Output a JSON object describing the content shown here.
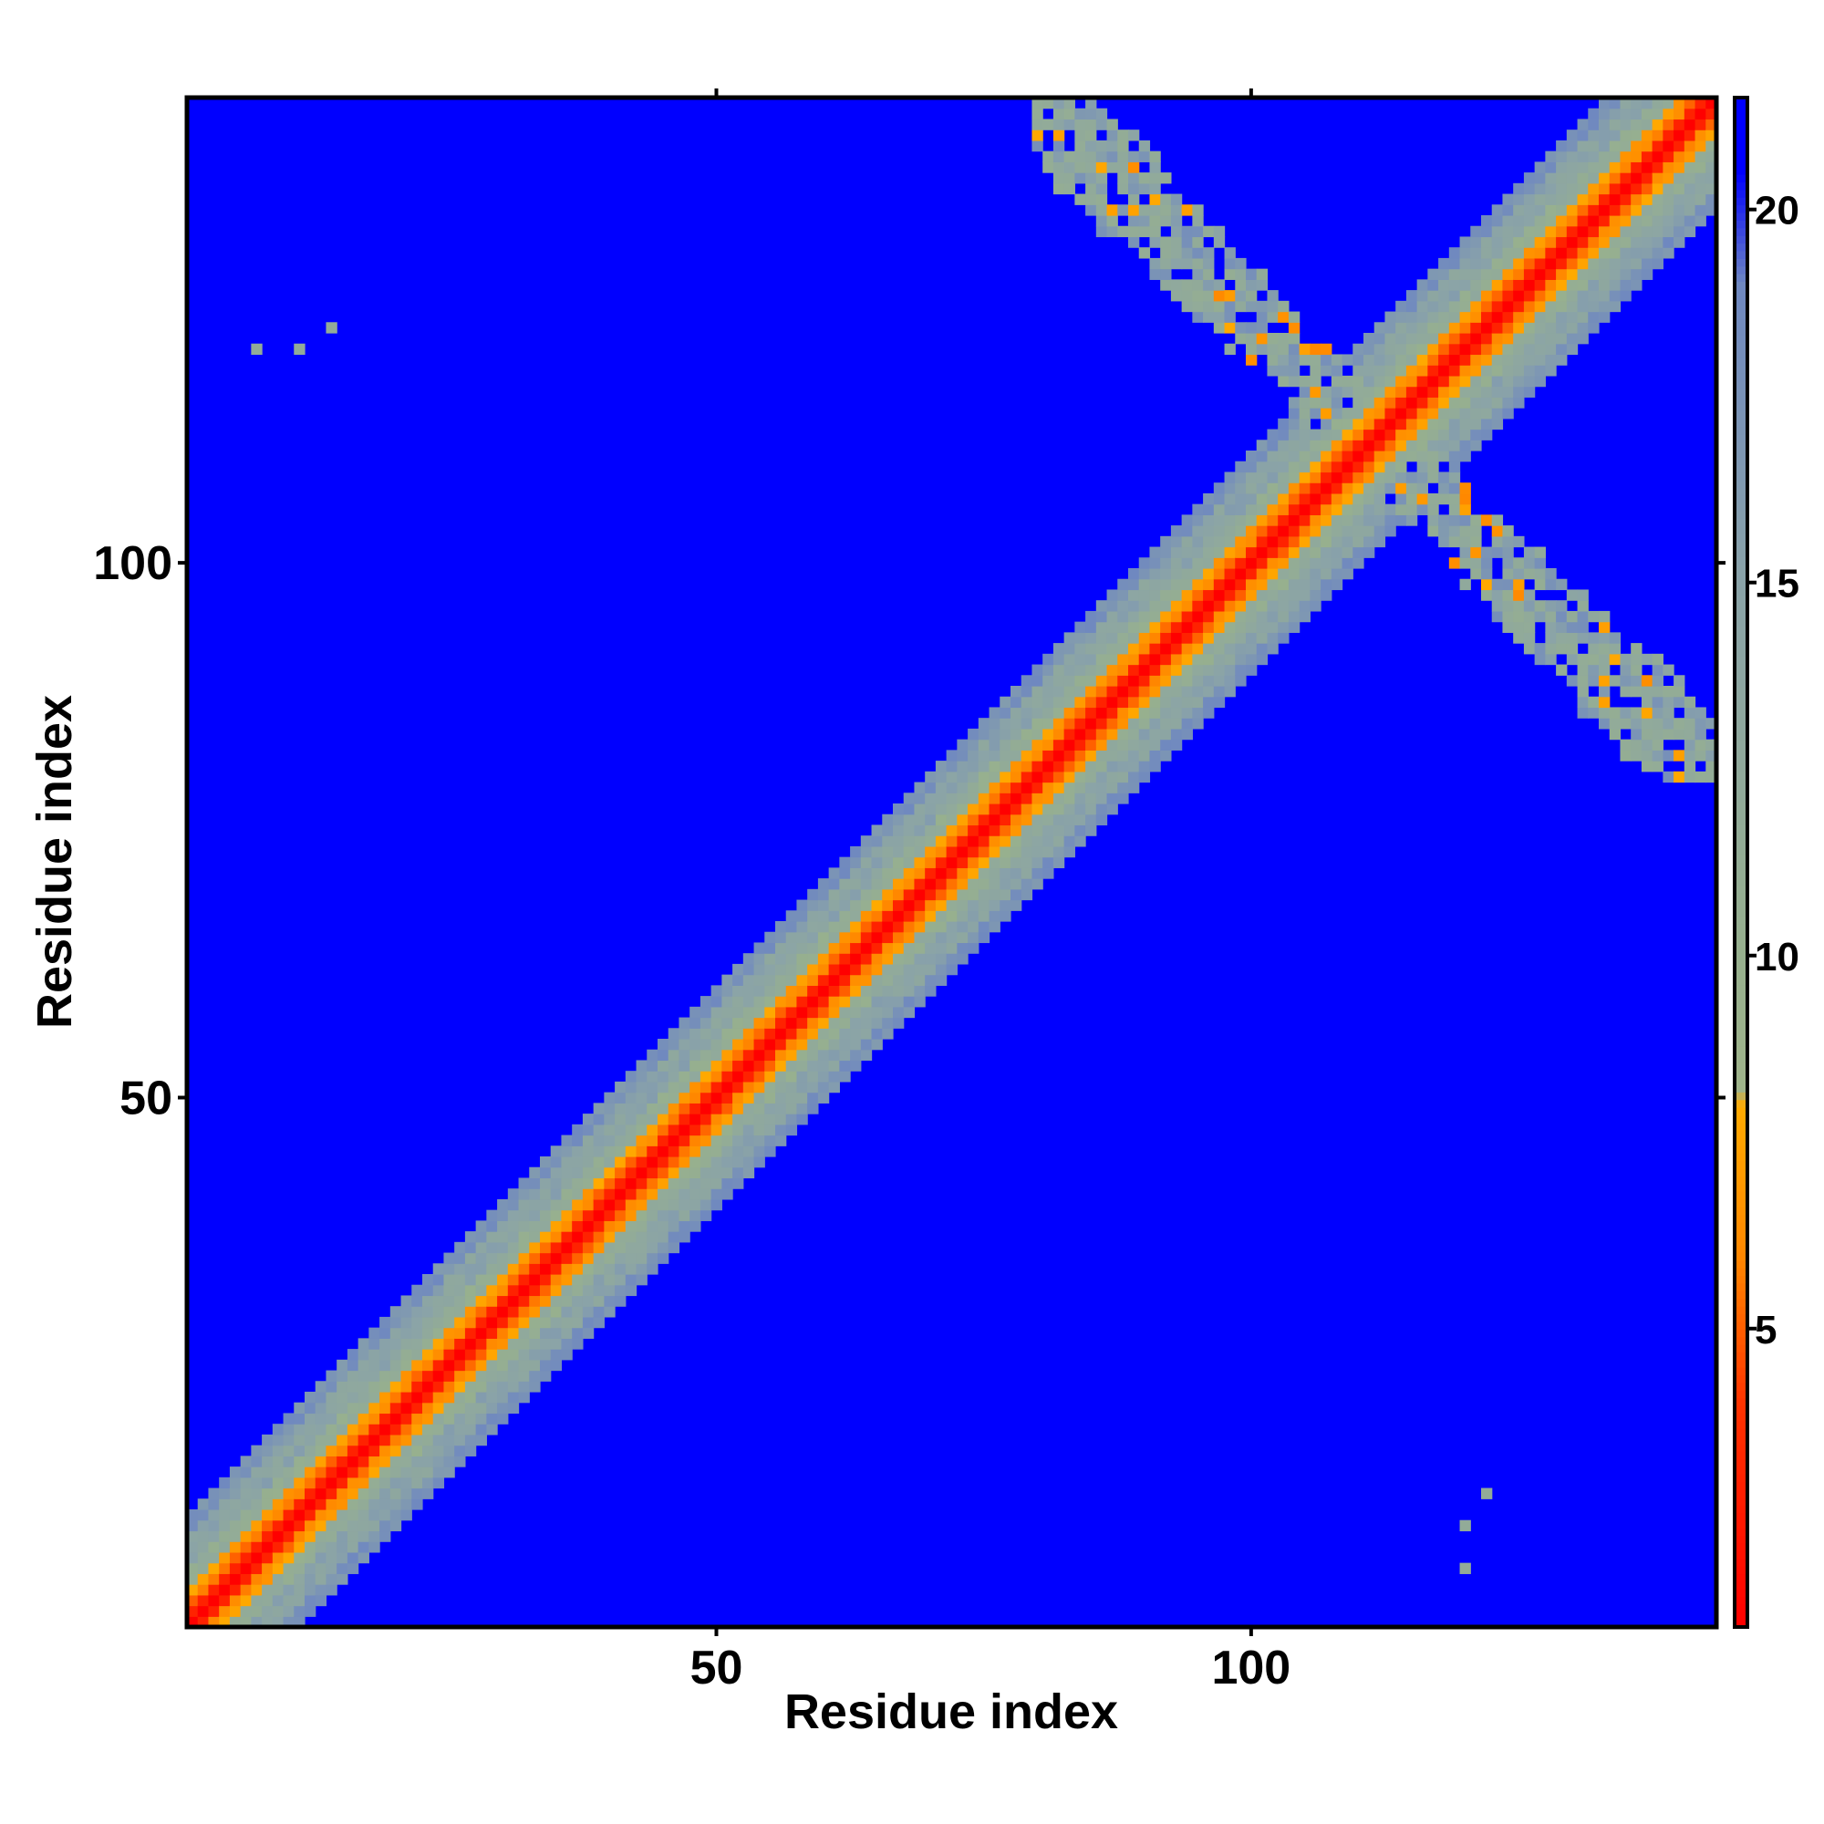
{
  "chart_data": {
    "type": "heatmap",
    "title": "",
    "xlabel": "Residue index",
    "ylabel": "Residue index",
    "n_residues": 143,
    "x_ticks": [
      50,
      100
    ],
    "y_ticks": [
      50,
      100
    ],
    "colorbar": {
      "range": [
        1,
        21.5
      ],
      "ticks": [
        5,
        10,
        15,
        20
      ],
      "stops": [
        {
          "value": 1,
          "color": "#ff0000"
        },
        {
          "value": 4,
          "color": "#ff3300"
        },
        {
          "value": 6,
          "color": "#ff8800"
        },
        {
          "value": 8,
          "color": "#ffaa00"
        },
        {
          "value": 8.2,
          "color": "#9fb48a"
        },
        {
          "value": 10,
          "color": "#97b08e"
        },
        {
          "value": 15,
          "color": "#8aa3a8"
        },
        {
          "value": 19,
          "color": "#6f88c0"
        },
        {
          "value": 20.5,
          "color": "#0000ff"
        }
      ]
    },
    "background_value": 21,
    "diagonal_band": {
      "description_values": {
        "self": 1,
        "near_1": 3,
        "near_2": 6,
        "near_3": 8,
        "edge": 14,
        "outer": 18
      },
      "half_width_residues": 10
    },
    "contact_clusters": [
      {
        "i_range": [
          80,
          143
        ],
        "j_range": [
          80,
          143
        ],
        "anti_diagonal_center": 223,
        "values": [
          12,
          15,
          18,
          7
        ]
      }
    ],
    "isolated_contacts": [
      {
        "i": 7,
        "j": 120,
        "value": 12
      },
      {
        "i": 11,
        "j": 120,
        "value": 12
      },
      {
        "i": 14,
        "j": 122,
        "value": 12
      },
      {
        "i": 122,
        "j": 13,
        "value": 12
      },
      {
        "i": 120,
        "j": 10,
        "value": 12
      },
      {
        "i": 120,
        "j": 6,
        "value": 12
      }
    ]
  }
}
